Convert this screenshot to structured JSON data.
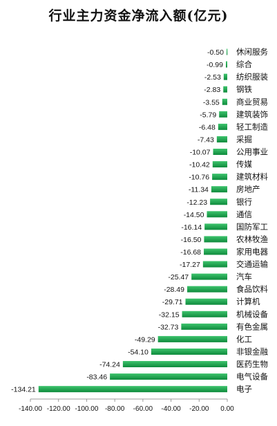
{
  "chart_data": {
    "type": "bar",
    "orientation": "horizontal",
    "title": "行业主力资金净流入额(亿元)",
    "categories": [
      "休闲服务",
      "综合",
      "纺织服装",
      "钢铁",
      "商业贸易",
      "建筑装饰",
      "轻工制造",
      "采掘",
      "公用事业",
      "传媒",
      "建筑材料",
      "房地产",
      "银行",
      "通信",
      "国防军工",
      "农林牧渔",
      "家用电器",
      "交通运输",
      "汽车",
      "食品饮料",
      "计算机",
      "机械设备",
      "有色金属",
      "化工",
      "非银金融",
      "医药生物",
      "电气设备",
      "电子"
    ],
    "values": [
      -0.5,
      -0.99,
      -2.53,
      -2.83,
      -3.55,
      -5.79,
      -6.48,
      -7.43,
      -10.07,
      -10.42,
      -10.76,
      -11.34,
      -12.23,
      -14.5,
      -16.14,
      -16.5,
      -16.68,
      -17.27,
      -25.47,
      -28.49,
      -29.71,
      -32.15,
      -32.73,
      -49.29,
      -54.1,
      -74.24,
      -83.46,
      -134.21
    ],
    "value_labels": [
      "-0.50",
      "-0.99",
      "-2.53",
      "-2.83",
      "-3.55",
      "-5.79",
      "-6.48",
      "-7.43",
      "-10.07",
      "-10.42",
      "-10.76",
      "-11.34",
      "-12.23",
      "-14.50",
      "-16.14",
      "-16.50",
      "-16.68",
      "-17.27",
      "-25.47",
      "-28.49",
      "-29.71",
      "-32.15",
      "-32.73",
      "-49.29",
      "-54.10",
      "-74.24",
      "-83.46",
      "-134.21"
    ],
    "x_ticks": [
      "-140.00",
      "-120.00",
      "-100.00",
      "-80.00",
      "-60.00",
      "-40.00",
      "-20.00",
      "0.00"
    ],
    "x_tick_values": [
      -140,
      -120,
      -100,
      -80,
      -60,
      -40,
      -20,
      0
    ],
    "xlim": [
      -140,
      0
    ],
    "xlabel": "",
    "ylabel": "",
    "grid": false,
    "legend": "none",
    "colors": {
      "bar_light": "#3ec46d",
      "bar_dark": "#0e8a3c",
      "axis": "#999999"
    }
  }
}
